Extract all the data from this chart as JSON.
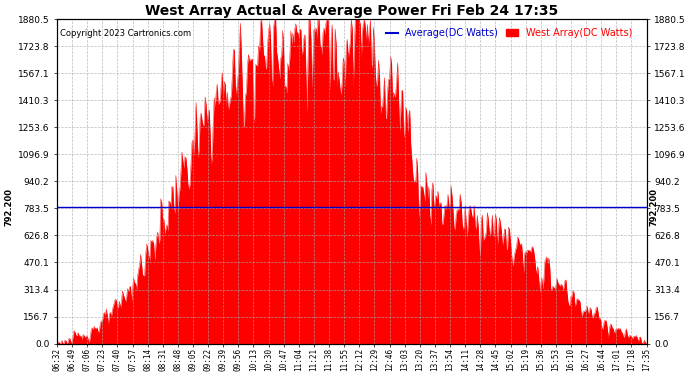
{
  "title": "West Array Actual & Average Power Fri Feb 24 17:35",
  "copyright": "Copyright 2023 Cartronics.com",
  "legend_avg": "Average(DC Watts)",
  "legend_west": "West Array(DC Watts)",
  "avg_value": 792.2,
  "avg_label": "792.200",
  "y_max": 1880.5,
  "y_min": 0.0,
  "y_ticks": [
    0.0,
    156.7,
    313.4,
    470.1,
    626.8,
    783.5,
    940.2,
    1096.9,
    1253.6,
    1410.3,
    1567.1,
    1723.8,
    1880.5
  ],
  "bg_color": "#ffffff",
  "fill_color": "#ff0000",
  "avg_line_color": "#0000cd",
  "grid_color": "#aaaaaa",
  "title_color": "#000000",
  "copyright_color": "#000000",
  "legend_avg_color": "#0000cd",
  "legend_west_color": "#ff0000",
  "x_label_color": "#000000",
  "figsize": [
    6.9,
    3.75
  ],
  "dpi": 100,
  "x_labels": [
    "06:32",
    "06:49",
    "07:06",
    "07:23",
    "07:40",
    "07:57",
    "08:14",
    "08:31",
    "08:48",
    "09:05",
    "09:22",
    "09:39",
    "09:56",
    "10:13",
    "10:30",
    "10:47",
    "11:04",
    "11:21",
    "11:38",
    "11:55",
    "12:12",
    "12:29",
    "12:46",
    "13:03",
    "13:20",
    "13:37",
    "13:54",
    "14:11",
    "14:28",
    "14:45",
    "15:02",
    "15:19",
    "15:36",
    "15:53",
    "16:10",
    "16:27",
    "16:44",
    "17:01",
    "17:18",
    "17:35"
  ]
}
